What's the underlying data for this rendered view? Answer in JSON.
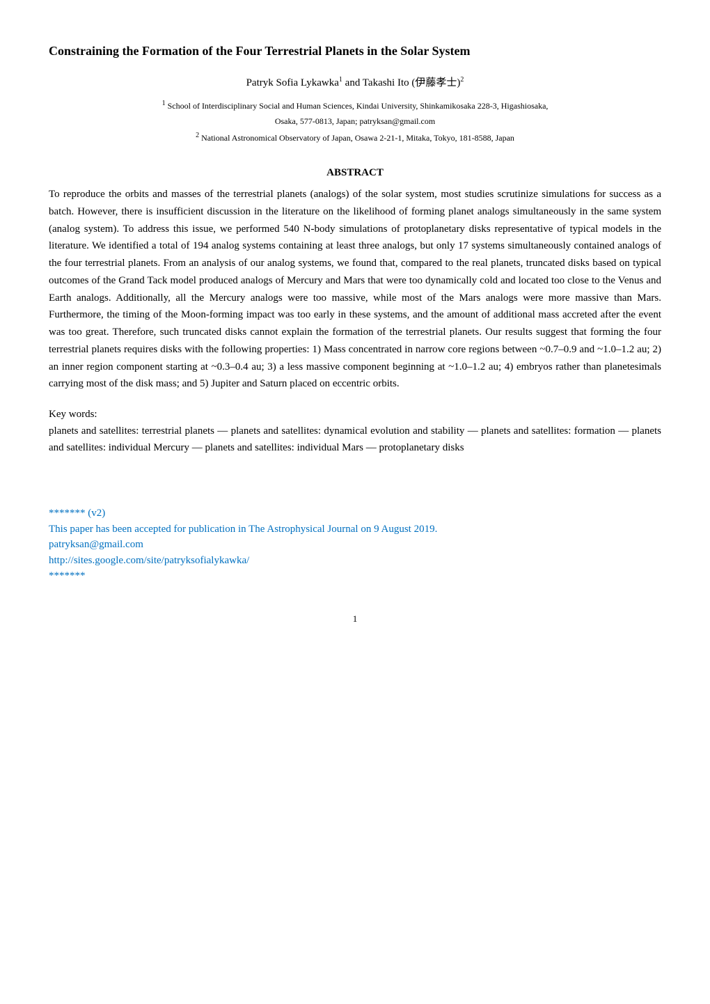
{
  "title": "Constraining the Formation of the Four Terrestrial Planets in the Solar System",
  "authors_html": "Patryk Sofia Lykawka<span class='sup'>1</span> and Takashi Ito (伊藤孝士)<span class='sup'>2</span>",
  "affiliations": [
    "<span class='sup'>1</span> School of Interdisciplinary Social and Human Sciences, Kindai University, Shinkamikosaka 228-3, Higashiosaka,",
    "Osaka, 577-0813, Japan; patryksan@gmail.com",
    "<span class='sup'>2</span> National Astronomical Observatory of Japan, Osawa 2-21-1, Mitaka, Tokyo, 181-8588, Japan"
  ],
  "abstract_heading": "ABSTRACT",
  "abstract_body": "To reproduce the orbits and masses of the terrestrial planets (analogs) of the solar system, most studies scrutinize simulations for success as a batch. However, there is insufficient discussion in the literature on the likelihood of forming planet analogs simultaneously in the same system (analog system). To address this issue, we performed 540 N-body simulations of protoplanetary disks representative of typical models in the literature. We identified a total of 194 analog systems containing at least three analogs, but only 17 systems simultaneously contained analogs of the four terrestrial planets. From an analysis of our analog systems, we found that, compared to the real planets, truncated disks based on typical outcomes of the Grand Tack model produced analogs of Mercury and Mars that were too dynamically cold and located too close to the Venus and Earth analogs. Additionally, all the Mercury analogs were too massive, while most of the Mars analogs were more massive than Mars. Furthermore, the timing of the Moon-forming impact was too early in these systems, and the amount of additional mass accreted after the event was too great. Therefore, such truncated disks cannot explain the formation of the terrestrial planets. Our results suggest that forming the four terrestrial planets requires disks with the following properties: 1) Mass concentrated in narrow core regions between ~0.7–0.9 and ~1.0–1.2 au; 2) an inner region component starting at ~0.3–0.4 au; 3) a less massive component beginning at ~1.0–1.2 au; 4) embryos rather than planetesimals carrying most of the disk mass; and 5) Jupiter and Saturn placed on eccentric orbits.",
  "keywords_label": "Key words:",
  "keywords_body": "planets and satellites: terrestrial planets — planets and satellites: dynamical evolution and stability — planets and satellites: formation — planets and satellites: individual Mercury — planets and satellites: individual Mars — protoplanetary disks",
  "notes": {
    "version": "******* (v2)",
    "line1": "This paper has been accepted for publication in The Astrophysical Journal on 9 August 2019.",
    "line2": "patryksan@gmail.com",
    "line3": "http://sites.google.com/site/patryksofialykawka/",
    "line4": "*******"
  },
  "page_number": "1",
  "colors": {
    "text": "#000000",
    "note": "#0070c0",
    "background": "#ffffff"
  },
  "typography": {
    "title_fontsize": 18,
    "body_fontsize": 15,
    "affiliation_fontsize": 12,
    "font_family": "Times New Roman"
  }
}
